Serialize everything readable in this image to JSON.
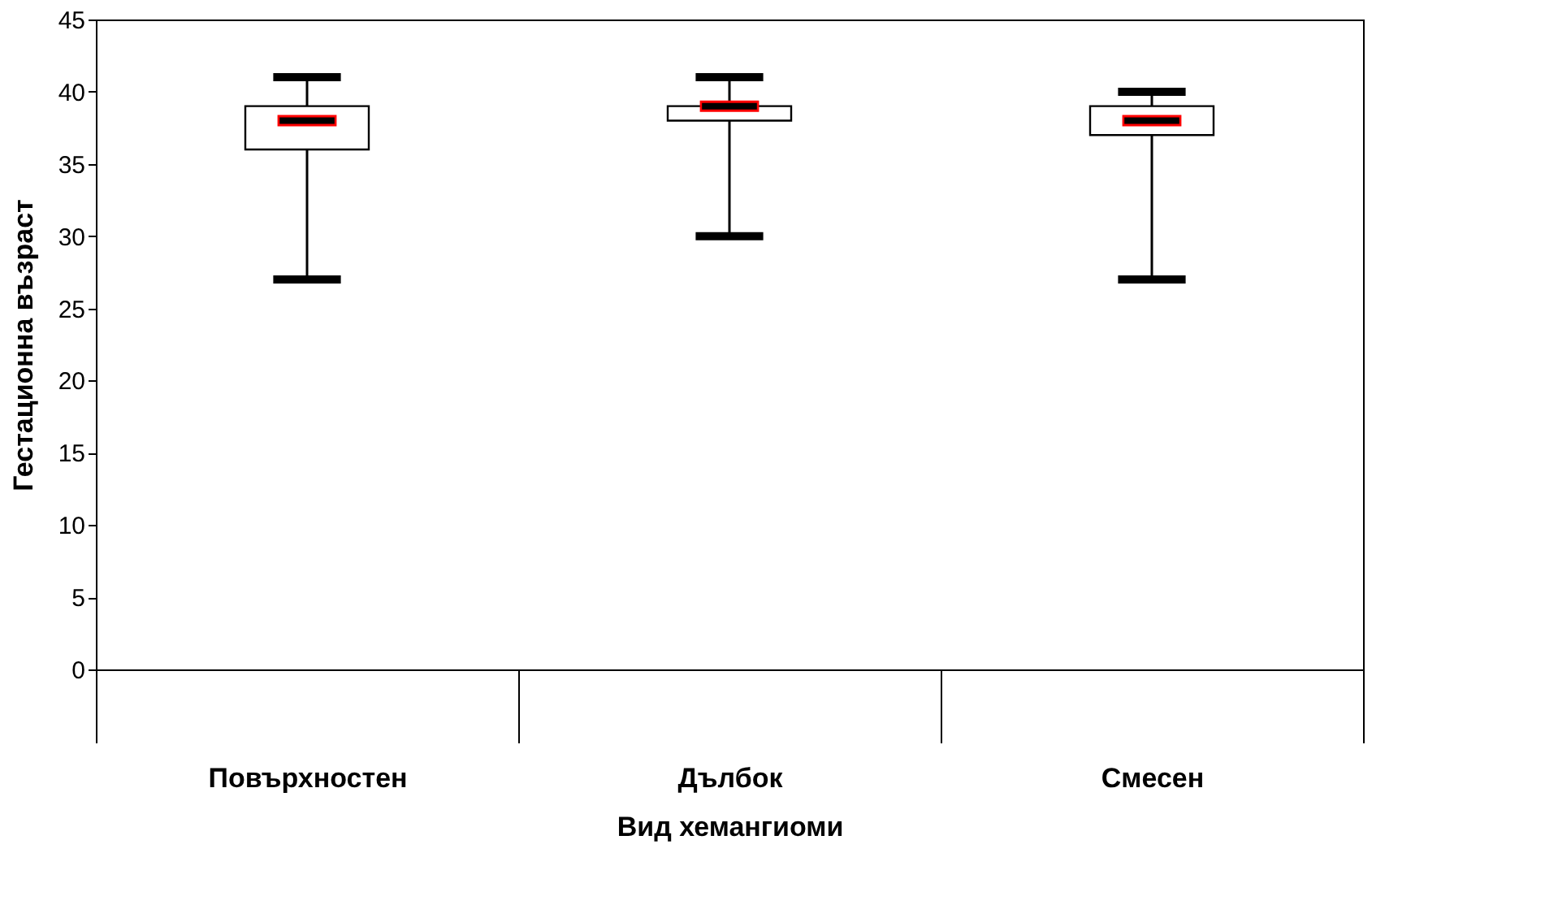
{
  "chart_data": {
    "type": "box",
    "xlabel": "Вид хемангиоми",
    "ylabel": "Гестационна възраст",
    "categories": [
      "Повърхностен",
      "Дълбок",
      "Смесен"
    ],
    "boxes": [
      {
        "low": 27,
        "q1": 36,
        "median": 38,
        "q3": 39,
        "high": 41
      },
      {
        "low": 30,
        "q1": 38,
        "median": 39,
        "q3": 39,
        "high": 41
      },
      {
        "low": 27,
        "q1": 37,
        "median": 38,
        "q3": 39,
        "high": 40
      }
    ],
    "ylim": [
      0,
      45
    ],
    "yticks": [
      0,
      5,
      10,
      15,
      20,
      25,
      30,
      35,
      40,
      45
    ],
    "grid": false
  }
}
